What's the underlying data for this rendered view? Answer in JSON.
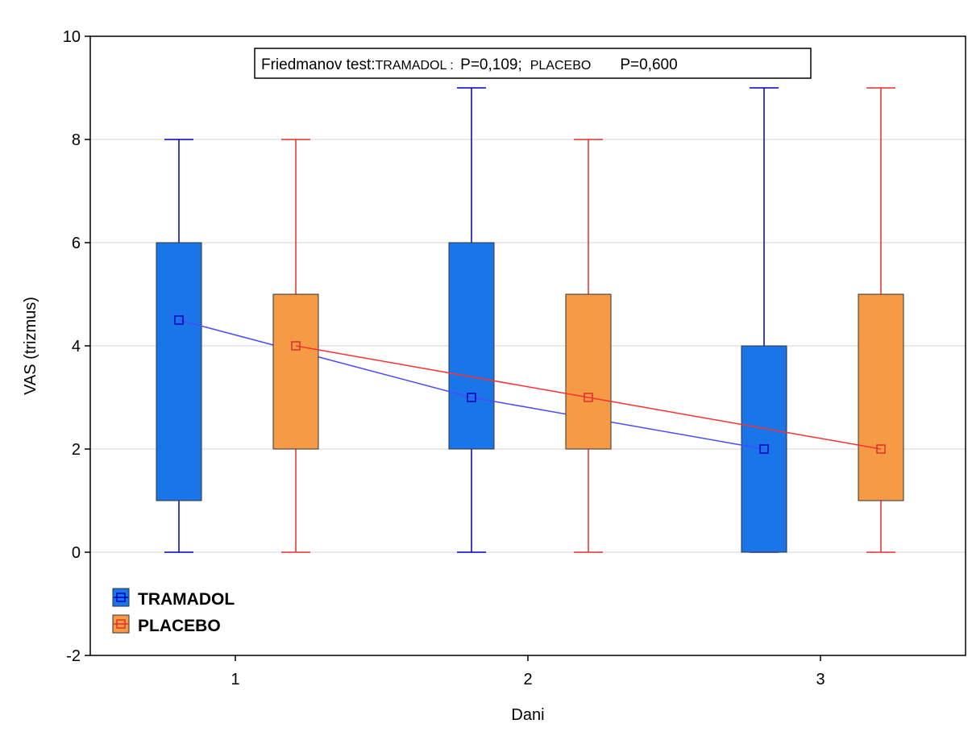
{
  "chart_data": {
    "type": "box",
    "xlabel": "Dani",
    "ylabel": "VAS (trizmus)",
    "ylim": [
      -2,
      10
    ],
    "yticks": [
      -2,
      0,
      2,
      4,
      6,
      8,
      10
    ],
    "categories": [
      "1",
      "2",
      "3"
    ],
    "grid": true,
    "legend_position": "bottom-left",
    "annotation": {
      "test_label": "Friedmanov test:",
      "group1_label": "TRAMADOL : ",
      "group1_p": "P=0,109;",
      "group2_label": "PLACEBO",
      "group2_p": "P=0,600"
    },
    "series": [
      {
        "name": "TRAMADOL",
        "fill": "#1a75e8",
        "stroke": "#0000c0",
        "line": "#4a4aff",
        "boxes": [
          {
            "category": "1",
            "min": 0,
            "q1": 1,
            "median": 4.5,
            "q3": 6,
            "max": 8
          },
          {
            "category": "2",
            "min": 0,
            "q1": 2,
            "median": 3,
            "q3": 6,
            "max": 9
          },
          {
            "category": "3",
            "min": 0,
            "q1": 0,
            "median": 2,
            "q3": 4,
            "max": 9
          }
        ]
      },
      {
        "name": "PLACEBO",
        "fill": "#f59a45",
        "stroke": "#e0302a",
        "line": "#ff3030",
        "boxes": [
          {
            "category": "1",
            "min": 0,
            "q1": 2,
            "median": 4,
            "q3": 5,
            "max": 8
          },
          {
            "category": "2",
            "min": 0,
            "q1": 2,
            "median": 3,
            "q3": 5,
            "max": 8
          },
          {
            "category": "3",
            "min": 0,
            "q1": 1,
            "median": 2,
            "q3": 5,
            "max": 9
          }
        ]
      }
    ]
  }
}
